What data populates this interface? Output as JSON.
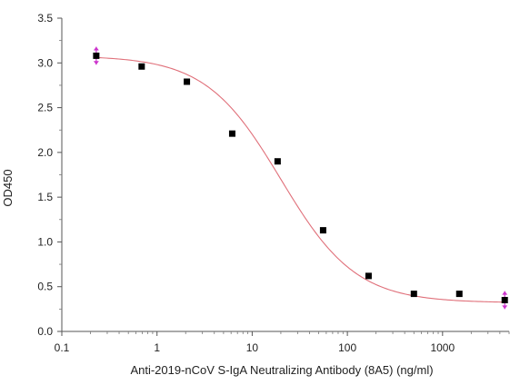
{
  "chart_data": {
    "type": "scatter",
    "title": "",
    "xlabel": "Anti-2019-nCoV S-IgA Neutralizing Antibody (8A5) (ng/ml)",
    "ylabel": "OD450",
    "xscale": "log",
    "xlim": [
      0.1,
      5000
    ],
    "ylim": [
      0.0,
      3.5
    ],
    "x_ticks": [
      {
        "value": 0.1,
        "label": "0.1"
      },
      {
        "value": 1,
        "label": "1"
      },
      {
        "value": 10,
        "label": "10"
      },
      {
        "value": 100,
        "label": "100"
      },
      {
        "value": 1000,
        "label": "1000"
      }
    ],
    "y_ticks": [
      {
        "value": 0.0,
        "label": "0.0"
      },
      {
        "value": 0.5,
        "label": "0.5"
      },
      {
        "value": 1.0,
        "label": "1.0"
      },
      {
        "value": 1.5,
        "label": "1.5"
      },
      {
        "value": 2.0,
        "label": "2.0"
      },
      {
        "value": 2.5,
        "label": "2.5"
      },
      {
        "value": 3.0,
        "label": "3.0"
      },
      {
        "value": 3.5,
        "label": "3.5"
      }
    ],
    "grid": false,
    "legend": "none",
    "series": [
      {
        "x": [
          0.23,
          0.69,
          2.06,
          6.17,
          18.5,
          55.6,
          167,
          500,
          1500,
          4500
        ],
        "y": [
          3.08,
          2.96,
          2.79,
          2.21,
          1.9,
          1.13,
          0.62,
          0.42,
          0.42,
          0.35
        ],
        "error": [
          0.1,
          0,
          0,
          0,
          0,
          0,
          0,
          0,
          0,
          0.1
        ],
        "marker_color": "#000000",
        "error_color": "#cc33cc"
      }
    ],
    "fit_curve": {
      "model": "4PL",
      "top": 3.08,
      "bottom": 0.32,
      "ec50": 20,
      "hill": 1.1,
      "color": "#e0707a"
    }
  }
}
